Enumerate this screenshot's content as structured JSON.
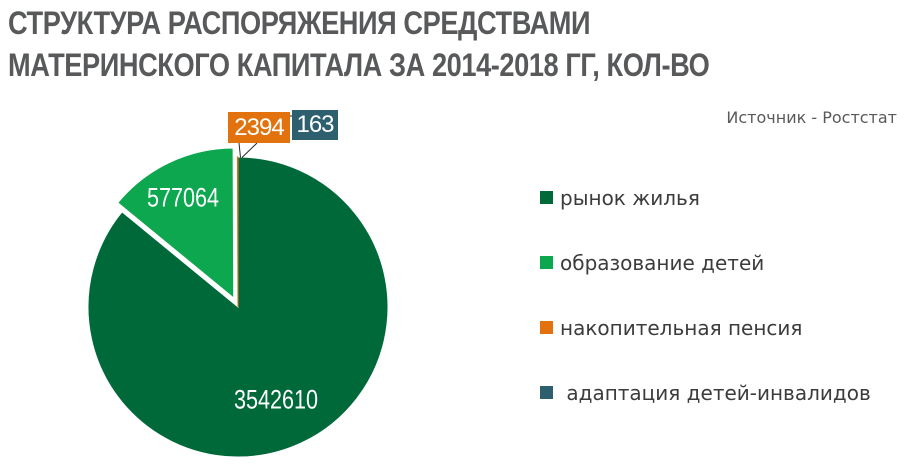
{
  "title_lines": [
    "СТРУКТУРА РАСПОРЯЖЕНИЯ СРЕДСТВАМИ",
    "МАТЕРИНСКОГО КАПИТАЛА ЗА 2014-2018 ГГ, КОЛ-ВО"
  ],
  "source": "Источник - Ростстат",
  "colors": {
    "background": "#ffffff",
    "title_text": "#58595b",
    "legend_text": "#3c3c3c",
    "data_label_text": "#ffffff",
    "leader_line": "#262626"
  },
  "chart_data": {
    "type": "pie",
    "title": "СТРУКТУРА РАСПОРЯЖЕНИЯ СРЕДСТВАМИ МАТЕРИНСКОГО КАПИТАЛА ЗА 2014-2018 ГГ, КОЛ-ВО",
    "source": "Источник - Ростстат",
    "start_angle_deg": 0,
    "direction": "clockwise",
    "data_labels": "values",
    "legend_position": "right",
    "total": 4122231,
    "slices": [
      {
        "label": "рынок жилья",
        "value": 3542610,
        "color": "#00693a",
        "exploded": false
      },
      {
        "label": "образование детей",
        "value": 577064,
        "color": "#0da750",
        "exploded": true
      },
      {
        "label": "накопительная пенсия",
        "value": 2394,
        "color": "#e2720d",
        "exploded": false
      },
      {
        "label": " адаптация детей-инвалидов",
        "value": 163,
        "color": "#2e5f6e",
        "exploded": false
      }
    ]
  }
}
